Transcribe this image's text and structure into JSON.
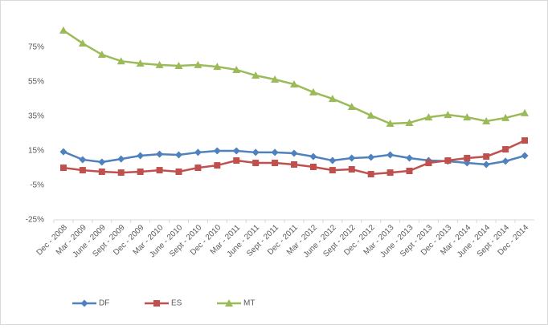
{
  "chart_data": {
    "type": "line",
    "categories": [
      "Dec - 2008",
      "Mar - 2009",
      "June - 2009",
      "Sept - 2009",
      "Dec - 2009",
      "Mar - 2010",
      "June - 2010",
      "Sept - 2010",
      "Dec - 2010",
      "Mar - 2011",
      "June - 2011",
      "Sept - 2011",
      "Dec - 2011",
      "Mar - 2012",
      "June - 2012",
      "Sept - 2012",
      "Dec - 2012",
      "Mar - 2013",
      "June - 2013",
      "Sept - 2013",
      "Dec - 2013",
      "Mar - 2014",
      "June - 2014",
      "Sept - 2014",
      "Dec - 2014"
    ],
    "series": [
      {
        "name": "DF",
        "color": "#4f81bd",
        "marker": "diamond",
        "values": [
          14.5,
          9.9,
          8.5,
          10.3,
          12.2,
          13.1,
          12.7,
          14.1,
          15,
          15,
          14.1,
          14.1,
          13.6,
          11.7,
          9.4,
          10.8,
          11.3,
          12.7,
          10.8,
          9.4,
          9,
          8,
          7.1,
          9,
          12.2
        ]
      },
      {
        "name": "ES",
        "color": "#c0504d",
        "marker": "square",
        "values": [
          5.2,
          3.8,
          2.9,
          2.4,
          2.9,
          3.8,
          2.9,
          5.2,
          6.6,
          9.4,
          8,
          8,
          7.1,
          5.7,
          3.8,
          4.3,
          1.5,
          2.4,
          3.4,
          8,
          9.4,
          10.8,
          11.7,
          15.9,
          21
        ]
      },
      {
        "name": "MT",
        "color": "#9bbb59",
        "marker": "triangle",
        "values": [
          84.8,
          77.3,
          70.8,
          67,
          65.7,
          64.8,
          64.3,
          64.8,
          63.8,
          62,
          58.7,
          56.4,
          53.6,
          49,
          45.2,
          40.6,
          35.5,
          30.8,
          31.3,
          34.5,
          35.9,
          34.5,
          32.2,
          34.1,
          36.9
        ]
      }
    ],
    "ylim": [
      -25,
      95
    ],
    "yticks": [
      {
        "value": -25,
        "label": "-25%"
      },
      {
        "value": -5,
        "label": "-5%"
      },
      {
        "value": 15,
        "label": "15%"
      },
      {
        "value": 35,
        "label": "35%"
      },
      {
        "value": 55,
        "label": "55%"
      },
      {
        "value": 75,
        "label": "75%"
      }
    ],
    "legend": "bottom"
  }
}
